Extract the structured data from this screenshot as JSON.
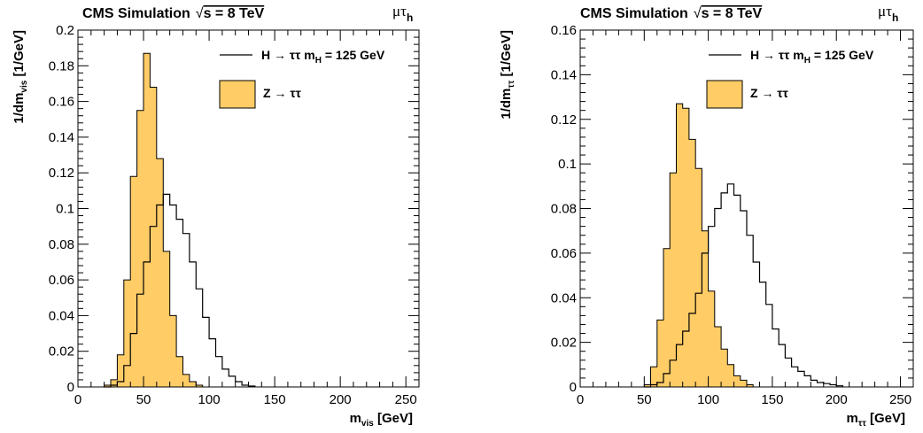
{
  "chart_data": [
    {
      "type": "histogram",
      "header": "CMS Simulation",
      "energy_label": "s = 8 TeV",
      "sqrt_symbol": "√",
      "channel": "μτ",
      "channel_sub": "h",
      "xlabel": "m",
      "xlabel_sub": "vis",
      "xlabel_unit": " [GeV]",
      "ylabel": "1/dm",
      "ylabel_sub": "vis",
      "ylabel_unit": " [1/GeV]",
      "xlim": [
        0,
        260
      ],
      "ylim": [
        0,
        0.2
      ],
      "x_ticks": [
        0,
        50,
        100,
        150,
        200,
        250
      ],
      "y_ticks": [
        0,
        0.02,
        0.04,
        0.06,
        0.08,
        0.1,
        0.12,
        0.14,
        0.16,
        0.18,
        0.2
      ],
      "y_tick_labels": [
        "0",
        "0.02",
        "0.04",
        "0.06",
        "0.08",
        "0.1",
        "0.12",
        "0.14",
        "0.16",
        "0.18",
        "0.2"
      ],
      "bin_width": 5,
      "bin_start": 20,
      "series": [
        {
          "name": "Z → ττ",
          "style": "filled",
          "color": "#FFCC66",
          "values": [
            0.001,
            0.004,
            0.018,
            0.06,
            0.118,
            0.155,
            0.187,
            0.168,
            0.128,
            0.076,
            0.04,
            0.017,
            0.007,
            0.003,
            0.001
          ]
        },
        {
          "name": "H → ττ m",
          "name_sub": "H",
          "name_suffix": " = 125 GeV",
          "style": "line",
          "color": "#000000",
          "values": [
            0.0,
            0.001,
            0.003,
            0.012,
            0.03,
            0.052,
            0.07,
            0.09,
            0.102,
            0.108,
            0.102,
            0.094,
            0.086,
            0.07,
            0.055,
            0.039,
            0.027,
            0.017,
            0.01,
            0.006,
            0.003,
            0.001,
            0.0005
          ]
        }
      ]
    },
    {
      "type": "histogram",
      "header": "CMS Simulation",
      "energy_label": "s = 8 TeV",
      "sqrt_symbol": "√",
      "channel": "μτ",
      "channel_sub": "h",
      "xlabel": "m",
      "xlabel_sub": "ττ",
      "xlabel_unit": " [GeV]",
      "ylabel": "1/dm",
      "ylabel_sub": "ττ",
      "ylabel_unit": " [1/GeV]",
      "xlim": [
        0,
        260
      ],
      "ylim": [
        0,
        0.16
      ],
      "x_ticks": [
        0,
        50,
        100,
        150,
        200,
        250
      ],
      "y_ticks": [
        0,
        0.02,
        0.04,
        0.06,
        0.08,
        0.1,
        0.12,
        0.14,
        0.16
      ],
      "y_tick_labels": [
        "0",
        "0.02",
        "0.04",
        "0.06",
        "0.08",
        "0.1",
        "0.12",
        "0.14",
        "0.16"
      ],
      "bin_width": 5,
      "bin_start": 50,
      "series": [
        {
          "name": "Z → ττ",
          "style": "filled",
          "color": "#FFCC66",
          "values": [
            0.001,
            0.009,
            0.03,
            0.062,
            0.096,
            0.127,
            0.125,
            0.111,
            0.098,
            0.07,
            0.043,
            0.027,
            0.017,
            0.01,
            0.005,
            0.003,
            0.001
          ]
        },
        {
          "name": "H → ττ m",
          "name_sub": "H",
          "name_suffix": " = 125 GeV",
          "style": "line",
          "color": "#000000",
          "values": [
            0.0,
            0.001,
            0.002,
            0.006,
            0.012,
            0.019,
            0.025,
            0.033,
            0.042,
            0.06,
            0.072,
            0.08,
            0.087,
            0.091,
            0.086,
            0.079,
            0.068,
            0.056,
            0.047,
            0.037,
            0.026,
            0.019,
            0.013,
            0.009,
            0.007,
            0.005,
            0.003,
            0.002,
            0.0015,
            0.001,
            0.0005
          ]
        }
      ]
    }
  ]
}
